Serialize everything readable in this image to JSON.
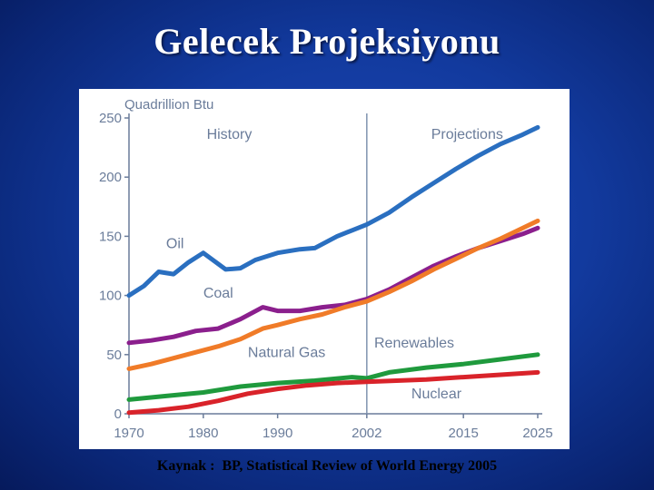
{
  "slide": {
    "title": "Gelecek  Projeksiyonu",
    "source_label": "Kaynak :",
    "source_text": "BP, Statistical Review of World Energy 2005"
  },
  "chart_data": {
    "type": "line",
    "ylabel": "Quadrillion Btu",
    "ylim": [
      0,
      250
    ],
    "yticks": [
      0,
      50,
      100,
      150,
      200,
      250
    ],
    "xlim": [
      1970,
      2025
    ],
    "xticks": [
      1970,
      1980,
      1990,
      2002,
      2015,
      2025
    ],
    "divider_x": 2002,
    "region_labels": {
      "history": "History",
      "projections": "Projections"
    },
    "grid": false,
    "series": [
      {
        "name": "Oil",
        "color": "#2a6fc0",
        "label_at": [
          1975,
          140
        ],
        "x": [
          1970,
          1972,
          1974,
          1976,
          1978,
          1980,
          1983,
          1985,
          1987,
          1990,
          1993,
          1995,
          1998,
          2000,
          2002,
          2005,
          2008,
          2011,
          2014,
          2017,
          2020,
          2023,
          2025
        ],
        "y": [
          100,
          108,
          120,
          118,
          128,
          136,
          122,
          123,
          130,
          136,
          139,
          140,
          150,
          155,
          160,
          170,
          183,
          195,
          207,
          218,
          228,
          236,
          242
        ]
      },
      {
        "name": "Coal",
        "color": "#8b1f8d",
        "label_at": [
          1980,
          98
        ],
        "x": [
          1970,
          1973,
          1976,
          1979,
          1982,
          1985,
          1988,
          1990,
          1993,
          1996,
          1999,
          2002,
          2005,
          2008,
          2011,
          2014,
          2017,
          2020,
          2023,
          2025
        ],
        "y": [
          60,
          62,
          65,
          70,
          72,
          80,
          90,
          87,
          87,
          90,
          92,
          97,
          105,
          115,
          125,
          133,
          140,
          146,
          152,
          157
        ]
      },
      {
        "name": "Natural Gas",
        "color": "#f07b28",
        "label_at": [
          1986,
          48
        ],
        "x": [
          1970,
          1973,
          1976,
          1979,
          1982,
          1985,
          1988,
          1990,
          1993,
          1996,
          1999,
          2002,
          2005,
          2008,
          2011,
          2014,
          2017,
          2020,
          2023,
          2025
        ],
        "y": [
          38,
          42,
          47,
          52,
          57,
          63,
          72,
          75,
          80,
          84,
          90,
          95,
          103,
          112,
          122,
          131,
          140,
          148,
          157,
          163
        ]
      },
      {
        "name": "Renewables",
        "color": "#1f9a3d",
        "label_at": [
          2003,
          56
        ],
        "x": [
          1970,
          1975,
          1980,
          1985,
          1990,
          1995,
          2000,
          2002,
          2005,
          2010,
          2015,
          2020,
          2025
        ],
        "y": [
          12,
          15,
          18,
          23,
          26,
          28,
          31,
          30,
          35,
          39,
          42,
          46,
          50
        ]
      },
      {
        "name": "Nuclear",
        "color": "#d9232a",
        "label_at": [
          2008,
          13
        ],
        "x": [
          1970,
          1974,
          1978,
          1982,
          1986,
          1990,
          1994,
          1998,
          2002,
          2006,
          2010,
          2015,
          2020,
          2025
        ],
        "y": [
          1,
          3,
          6,
          11,
          17,
          21,
          24,
          26,
          27,
          28,
          29,
          31,
          33,
          35
        ]
      }
    ]
  }
}
